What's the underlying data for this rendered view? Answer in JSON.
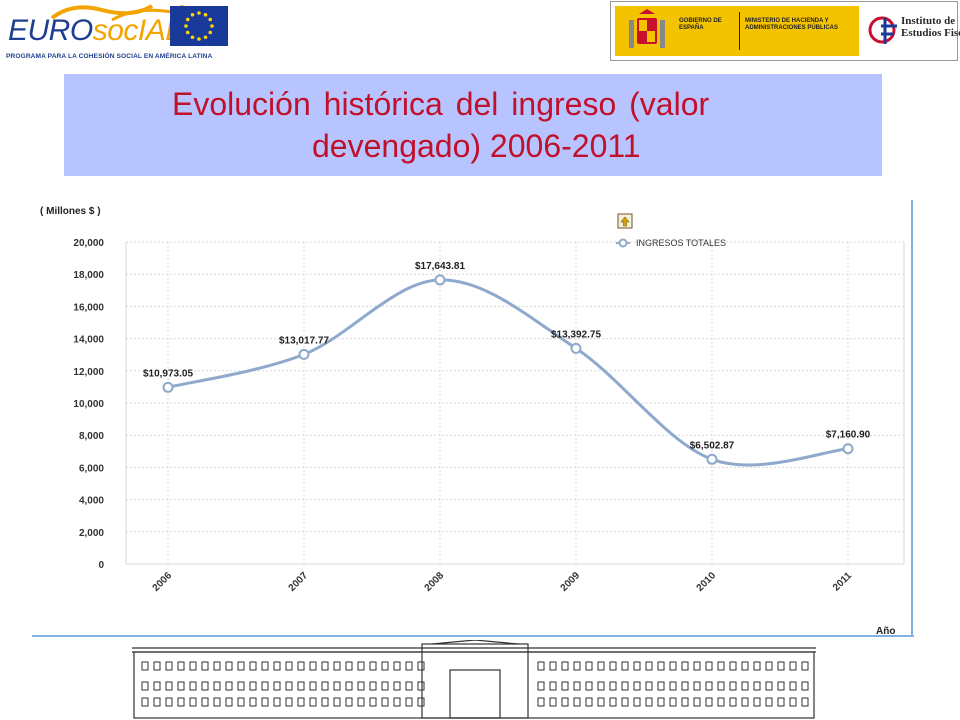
{
  "header": {
    "eurosocial_prefix": "EURO",
    "eurosocial_accent": "socIAL",
    "eurosocial_tagline": "PROGRAMA PARA LA COHESIÓN SOCIAL EN AMÉRICA LATINA",
    "gov_line1": "GOBIERNO DE ESPAÑA",
    "gov_line2": "MINISTERIO DE HACIENDA Y ADMINISTRACIONES PÚBLICAS",
    "ief_name": "Instituto de\nEstudios Fiscales"
  },
  "slide": {
    "title_line1": "Evolución histórica del ingreso (valor",
    "title_line2": "devengado) 2006-2011",
    "title_color": "#c0102a",
    "band_color": "#b8c4ff"
  },
  "chart_data": {
    "type": "line",
    "ylabel": "( Millones $ )",
    "xlabel": "Año",
    "categories": [
      "2006",
      "2007",
      "2008",
      "2009",
      "2010",
      "2011"
    ],
    "series": [
      {
        "name": "INGRESOS TOTALES",
        "values": [
          10973.05,
          13017.77,
          17643.81,
          13392.75,
          6502.87,
          7160.9
        ],
        "labels": [
          "$10,973.05",
          "$13,017.77",
          "$17,643.81",
          "$13,392.75",
          "$6,502.87",
          "$7,160.90"
        ],
        "color": "#8ea9cc"
      }
    ],
    "ylim": [
      0,
      20000
    ],
    "yticks": [
      0,
      2000,
      4000,
      6000,
      8000,
      10000,
      12000,
      14000,
      16000,
      18000,
      20000
    ],
    "ytick_labels": [
      "0",
      "2,000",
      "4,000",
      "6,000",
      "8,000",
      "10,000",
      "12,000",
      "14,000",
      "16,000",
      "18,000",
      "20,000"
    ],
    "grid": true,
    "legend": "top-right"
  }
}
